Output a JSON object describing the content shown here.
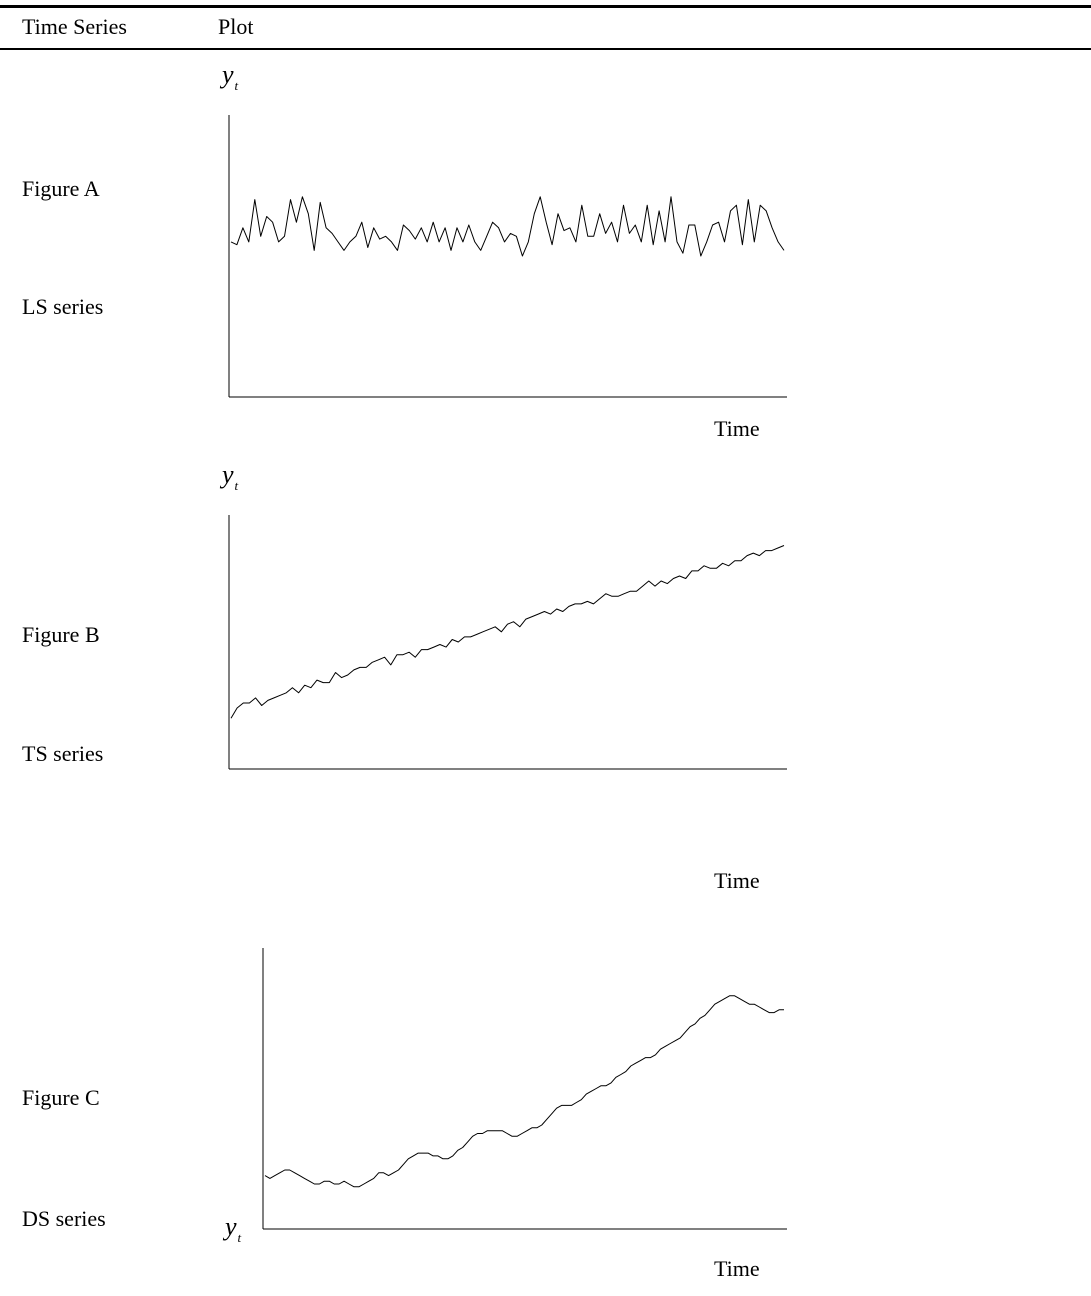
{
  "header": {
    "col1": "Time Series",
    "col2": "Plot"
  },
  "rows": [
    {
      "figure": "Figure A",
      "series": "LS series"
    },
    {
      "figure": "Figure B",
      "series": "TS series"
    },
    {
      "figure": "Figure C",
      "series": "DS series"
    }
  ],
  "chart_data": [
    {
      "type": "line",
      "title": "",
      "xlabel": "Time",
      "ylabel": "y",
      "ylabel_sub": "t",
      "ylim": [
        0,
        100
      ],
      "series": [
        {
          "values": [
            55,
            54,
            60,
            55,
            70,
            57,
            64,
            62,
            55,
            57,
            70,
            62,
            71,
            65,
            52,
            69,
            60,
            58,
            55,
            52,
            55,
            57,
            62,
            53,
            60,
            56,
            57,
            55,
            52,
            61,
            59,
            56,
            60,
            55,
            62,
            55,
            60,
            52,
            60,
            55,
            61,
            55,
            52,
            57,
            62,
            60,
            55,
            58,
            57,
            50,
            55,
            65,
            71,
            62,
            54,
            65,
            59,
            60,
            55,
            68,
            57,
            57,
            65,
            58,
            62,
            55,
            68,
            58,
            61,
            55,
            68,
            54,
            66,
            55,
            71,
            55,
            51,
            61,
            61,
            50,
            55,
            61,
            62,
            55,
            66,
            68,
            54,
            70,
            55,
            68,
            66,
            60,
            55,
            52
          ],
          "color": "#000000"
        }
      ]
    },
    {
      "type": "line",
      "title": "",
      "xlabel": "Time",
      "ylabel": "y",
      "ylabel_sub": "t",
      "ylim": [
        0,
        100
      ],
      "series": [
        {
          "values": [
            20,
            24,
            26,
            26,
            28,
            25,
            27,
            28,
            29,
            30,
            32,
            30,
            33,
            32,
            35,
            34,
            34,
            38,
            36,
            37,
            39,
            40,
            40,
            42,
            43,
            44,
            41,
            45,
            45,
            46,
            44,
            47,
            47,
            48,
            49,
            48,
            51,
            50,
            52,
            52,
            53,
            54,
            55,
            56,
            54,
            57,
            58,
            56,
            59,
            60,
            61,
            62,
            61,
            63,
            62,
            64,
            65,
            65,
            66,
            65,
            67,
            69,
            68,
            68,
            69,
            70,
            70,
            72,
            74,
            72,
            74,
            73,
            75,
            76,
            75,
            78,
            78,
            80,
            79,
            79,
            81,
            80,
            82,
            82,
            84,
            85,
            84,
            86,
            86,
            87,
            88
          ],
          "color": "#000000"
        }
      ]
    },
    {
      "type": "line",
      "title": "",
      "xlabel": "Time",
      "ylabel": "y",
      "ylabel_sub": "t",
      "ylim": [
        0,
        100
      ],
      "series": [
        {
          "values": [
            19,
            18,
            19,
            20,
            21,
            21,
            20,
            19,
            18,
            17,
            16,
            16,
            17,
            17,
            16,
            16,
            17,
            16,
            15,
            15,
            16,
            17,
            18,
            20,
            20,
            19,
            20,
            21,
            23,
            25,
            26,
            27,
            27,
            27,
            26,
            26,
            25,
            25,
            26,
            28,
            29,
            31,
            33,
            34,
            34,
            35,
            35,
            35,
            35,
            34,
            33,
            33,
            34,
            35,
            36,
            36,
            37,
            39,
            41,
            43,
            44,
            44,
            44,
            45,
            46,
            48,
            49,
            50,
            51,
            51,
            52,
            54,
            55,
            56,
            58,
            59,
            60,
            61,
            61,
            62,
            64,
            65,
            66,
            67,
            68,
            70,
            72,
            73,
            75,
            76,
            78,
            80,
            81,
            82,
            83,
            83,
            82,
            81,
            80,
            80,
            79,
            78,
            77,
            77,
            78,
            78
          ],
          "color": "#000000"
        }
      ]
    }
  ]
}
